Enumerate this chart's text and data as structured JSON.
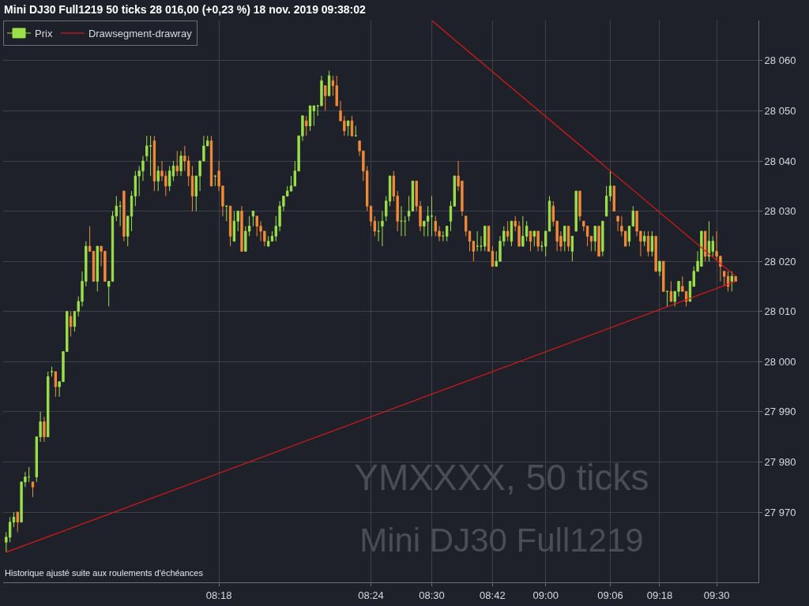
{
  "chart_data": {
    "type": "candlestick",
    "title": "Mini DJ30 Full1219 50 ticks 28 016,00 (+0,23 %) 18 nov. 2019 09:38:02",
    "annotations": [
      "YMXXXX, 50 ticks",
      "Mini DJ30 Full1219",
      "Historique ajusté suite aux roulements d'échéances"
    ],
    "categories": [
      null,
      null,
      null,
      null,
      null,
      null,
      null,
      null,
      null,
      null,
      null,
      null,
      null,
      null,
      null,
      null,
      null,
      null,
      null,
      null,
      null,
      null,
      null,
      null,
      null,
      null,
      null,
      null,
      null,
      null,
      null,
      null,
      null,
      null,
      null,
      null,
      null,
      null,
      null,
      null,
      null,
      null,
      null,
      null,
      null,
      null,
      null,
      null,
      null,
      null,
      null,
      null,
      null,
      null,
      null,
      null,
      "08:18",
      null,
      null,
      null,
      null,
      null,
      null,
      null,
      null,
      null,
      null,
      null,
      null,
      null,
      null,
      null,
      null,
      null,
      null,
      null,
      null,
      null,
      null,
      null,
      null,
      null,
      null,
      null,
      null,
      null,
      null,
      null,
      null,
      null,
      null,
      null,
      null,
      null,
      null,
      null,
      "08:24",
      null,
      null,
      null,
      null,
      null,
      null,
      null,
      null,
      null,
      null,
      null,
      null,
      null,
      null,
      null,
      "08:30",
      null,
      null,
      null,
      null,
      null,
      null,
      null,
      null,
      null,
      null,
      null,
      null,
      null,
      null,
      null,
      "08:42",
      null,
      null,
      null,
      null,
      null,
      null,
      null,
      null,
      null,
      null,
      null,
      null,
      null,
      "09:00",
      null,
      null,
      null,
      null,
      null,
      null,
      null,
      null,
      null,
      null,
      null,
      null,
      null,
      null,
      null,
      null,
      "09:06",
      null,
      null,
      null,
      null,
      null,
      null,
      null,
      null,
      null,
      null,
      null,
      null,
      "09:18",
      null,
      null,
      null,
      null,
      null,
      null,
      null,
      null,
      null,
      null,
      null,
      null,
      null,
      null,
      "09:30",
      null,
      null,
      null,
      null,
      null
    ],
    "series": [
      {
        "name": "Prix",
        "ohlc": [
          [
            27964,
            27966,
            27962,
            27965
          ],
          [
            27965,
            27969,
            27964,
            27968
          ],
          [
            27968,
            27970,
            27967,
            27969
          ],
          [
            27970,
            27970,
            27966,
            27968
          ],
          [
            27968,
            27976,
            27968,
            27976
          ],
          [
            27976,
            27978,
            27975,
            27977
          ],
          [
            27977,
            27979,
            27976,
            27977
          ],
          [
            27976,
            27976,
            27973,
            27975
          ],
          [
            27977,
            27985,
            27976,
            27985
          ],
          [
            27985,
            27990,
            27984,
            27988
          ],
          [
            27988,
            27989,
            27984,
            27985
          ],
          [
            27985,
            27998,
            27985,
            27997
          ],
          [
            27998,
            27999,
            27997,
            27998
          ],
          [
            27998,
            27998,
            27993,
            27995
          ],
          [
            27995,
            27996,
            27993,
            27996
          ],
          [
            27996,
            28002,
            27996,
            28002
          ],
          [
            28002,
            28010,
            28002,
            28010
          ],
          [
            28009,
            28010,
            28005,
            28007
          ],
          [
            28007,
            28010,
            28006,
            28010
          ],
          [
            28010,
            28013,
            28009,
            28012
          ],
          [
            28012,
            28018,
            28011,
            28016
          ],
          [
            28016,
            28024,
            28015,
            28023
          ],
          [
            28023,
            28027,
            28022,
            28022
          ],
          [
            28022,
            28022,
            28016,
            28016
          ],
          [
            28016,
            28023,
            28014,
            28023
          ],
          [
            28023,
            28023,
            28019,
            28022
          ],
          [
            28022,
            28022,
            28016,
            28016
          ],
          [
            28015,
            28016,
            28011,
            28016
          ],
          [
            28016,
            28030,
            28016,
            28029
          ],
          [
            28029,
            28033,
            28028,
            28031
          ],
          [
            28031,
            28032,
            28027,
            28031
          ],
          [
            28034,
            28034,
            28024,
            28025
          ],
          [
            28025,
            28029,
            28023,
            28029
          ],
          [
            28029,
            28034,
            28026,
            28033
          ],
          [
            28033,
            28038,
            28031,
            28037
          ],
          [
            28037,
            28039,
            28033,
            28038
          ],
          [
            28038,
            28041,
            28036,
            28040
          ],
          [
            28041,
            28045,
            28040,
            28043
          ],
          [
            28043,
            28045,
            28037,
            28043
          ],
          [
            28044,
            28045,
            28034,
            28036
          ],
          [
            28036,
            28039,
            28034,
            28038
          ],
          [
            28038,
            28040,
            28036,
            28037
          ],
          [
            28037,
            28038,
            28033,
            28035
          ],
          [
            28035,
            28039,
            28034,
            28038
          ],
          [
            28037,
            28040,
            28036,
            28039
          ],
          [
            28039,
            28042,
            28037,
            28038
          ],
          [
            28038,
            28042,
            28037,
            28041
          ],
          [
            28041,
            28043,
            28038,
            28040
          ],
          [
            28040,
            28041,
            28035,
            28037
          ],
          [
            28037,
            28039,
            28030,
            28033
          ],
          [
            28033,
            28037,
            28030,
            28037
          ],
          [
            28037,
            28040,
            28034,
            28040
          ],
          [
            28040,
            28045,
            28040,
            28043
          ],
          [
            28043,
            28045,
            28043,
            28044
          ],
          [
            28044,
            28045,
            28035,
            28035
          ],
          [
            28037,
            28037,
            28035,
            28037
          ],
          [
            28038,
            28040,
            28034,
            28035
          ],
          [
            28035,
            28035,
            28029,
            28031
          ],
          [
            28031,
            28031,
            28028,
            28031
          ],
          [
            28031,
            28031,
            28023,
            28025
          ],
          [
            28024,
            28030,
            28024,
            28028
          ],
          [
            28028,
            28030,
            28026,
            28030
          ],
          [
            28030,
            28031,
            28022,
            28022
          ],
          [
            28022,
            28027,
            28022,
            28026
          ],
          [
            28026,
            28029,
            28025,
            28027
          ],
          [
            28029,
            28030,
            28027,
            28030
          ],
          [
            28029,
            28029,
            28025,
            28027
          ],
          [
            28027,
            28028,
            28024,
            28026
          ],
          [
            28026,
            28026,
            28023,
            28024
          ],
          [
            28023,
            28025,
            28023,
            28024
          ],
          [
            28024,
            28026,
            28024,
            28025
          ],
          [
            28025,
            28029,
            28024,
            28027
          ],
          [
            28027,
            28032,
            28026,
            28031
          ],
          [
            28031,
            28033,
            28030,
            28033
          ],
          [
            28033,
            28035,
            28033,
            28034
          ],
          [
            28034,
            28037,
            28034,
            28035
          ],
          [
            28035,
            28040,
            28035,
            28038
          ],
          [
            28038,
            28045,
            28038,
            28045
          ],
          [
            28045,
            28049,
            28044,
            28049
          ],
          [
            28048,
            28049,
            28045,
            28047
          ],
          [
            28047,
            28051,
            28046,
            28051
          ],
          [
            28050,
            28051,
            28047,
            28051
          ],
          [
            28051,
            28051,
            28049,
            28051
          ],
          [
            28051,
            28057,
            28051,
            28056
          ],
          [
            28055,
            28055,
            28050,
            28053
          ],
          [
            28053,
            28058,
            28053,
            28057
          ],
          [
            28056,
            28057,
            28053,
            28055
          ],
          [
            28055,
            28057,
            28051,
            28051
          ],
          [
            28050,
            28052,
            28048,
            28048
          ],
          [
            28048,
            28049,
            28045,
            28046
          ],
          [
            28047,
            28048,
            28045,
            28048
          ],
          [
            28048,
            28049,
            28045,
            28045
          ],
          [
            28045,
            28047,
            28045,
            28045
          ],
          [
            28044,
            28044,
            28041,
            28042
          ],
          [
            28042,
            28042,
            28036,
            28038
          ],
          [
            28038,
            28039,
            28030,
            28031
          ],
          [
            28031,
            28031,
            28027,
            28028
          ],
          [
            28028,
            28029,
            28025,
            28026
          ],
          [
            28026,
            28028,
            28024,
            28026
          ],
          [
            28027,
            28030,
            28023,
            28028
          ],
          [
            28029,
            28033,
            28028,
            28032
          ],
          [
            28032,
            28037,
            28031,
            28037
          ],
          [
            28037,
            28038,
            28032,
            28033
          ],
          [
            28033,
            28034,
            28026,
            28028
          ],
          [
            28028,
            28031,
            28025,
            28028
          ],
          [
            28028,
            28029,
            28025,
            28028
          ],
          [
            28029,
            28033,
            28028,
            28030
          ],
          [
            28030,
            28036,
            28030,
            28036
          ],
          [
            28036,
            28036,
            28030,
            28031
          ],
          [
            28031,
            28032,
            28026,
            28027
          ],
          [
            28027,
            28028,
            28025,
            28028
          ],
          [
            28028,
            28031,
            28025,
            28029
          ],
          [
            28029,
            28033,
            28025,
            28029
          ],
          [
            28028,
            28029,
            28025,
            28026
          ],
          [
            28026,
            28027,
            28024,
            28025
          ],
          [
            28025,
            28026,
            28024,
            28025
          ],
          [
            28025,
            28027,
            28024,
            28027
          ],
          [
            28028,
            28032,
            28026,
            28031
          ],
          [
            28031,
            28037,
            28031,
            28037
          ],
          [
            28037,
            28040,
            28034,
            28035
          ],
          [
            28036,
            28036,
            28029,
            28030
          ],
          [
            28029,
            28029,
            28025,
            28026
          ],
          [
            28026,
            28026,
            28022,
            28024
          ],
          [
            28024,
            28024,
            28020,
            28022
          ],
          [
            28023,
            28026,
            28022,
            28023
          ],
          [
            28023,
            28025,
            28022,
            28023
          ],
          [
            28023,
            28027,
            28022,
            28027
          ],
          [
            28027,
            28027,
            28022,
            28022
          ],
          [
            28022,
            28023,
            28019,
            28019
          ],
          [
            28019,
            28022,
            28019,
            28020
          ],
          [
            28020,
            28025,
            28020,
            28024
          ],
          [
            28024,
            28027,
            28023,
            28026
          ],
          [
            28026,
            28028,
            28024,
            28025
          ],
          [
            28024,
            28028,
            28023,
            28028
          ],
          [
            28028,
            28029,
            28026,
            28027
          ],
          [
            28027,
            28028,
            28023,
            28023
          ],
          [
            28023,
            28029,
            28023,
            28025
          ],
          [
            28025,
            28028,
            28024,
            28027
          ],
          [
            28026,
            28026,
            28022,
            28024
          ],
          [
            28025,
            28026,
            28023,
            28026
          ],
          [
            28026,
            28026,
            28022,
            28023
          ],
          [
            28023,
            28024,
            28022,
            28023
          ],
          [
            28023,
            28026,
            28021,
            28026
          ],
          [
            28026,
            28033,
            28026,
            28032
          ],
          [
            28031,
            28032,
            28027,
            28028
          ],
          [
            28028,
            28028,
            28022,
            28024
          ],
          [
            28025,
            28026,
            28022,
            28023
          ],
          [
            28024,
            28027,
            28022,
            28027
          ],
          [
            28027,
            28027,
            28022,
            28023
          ],
          [
            28022,
            28025,
            28020,
            28025
          ],
          [
            28026,
            28034,
            28026,
            28034
          ],
          [
            28034,
            28034,
            28028,
            28029
          ],
          [
            28028,
            28028,
            28026,
            28027
          ],
          [
            28027,
            28027,
            28023,
            28025
          ],
          [
            28025,
            28025,
            28022,
            28024
          ],
          [
            28024,
            28027,
            28022,
            28027
          ],
          [
            28027,
            28027,
            28021,
            28021
          ],
          [
            28022,
            28028,
            28021,
            28028
          ],
          [
            28029,
            28035,
            28029,
            28033
          ],
          [
            28033,
            28038,
            28032,
            28035
          ],
          [
            28035,
            28035,
            28030,
            28030
          ],
          [
            28029,
            28029,
            28026,
            28028
          ],
          [
            28027,
            28029,
            28025,
            28026
          ],
          [
            28026,
            28026,
            28023,
            28023
          ],
          [
            28024,
            28027,
            28023,
            28027
          ],
          [
            28027,
            28031,
            28027,
            28030
          ],
          [
            28030,
            28030,
            28025,
            28026
          ],
          [
            28026,
            28026,
            28021,
            28024
          ],
          [
            28024,
            28026,
            28023,
            28025
          ],
          [
            28025,
            28026,
            28021,
            28022
          ],
          [
            28022,
            28026,
            28021,
            28025
          ],
          [
            28025,
            28025,
            28018,
            28018
          ],
          [
            28018,
            28020,
            28017,
            28020
          ],
          [
            28020,
            28020,
            28014,
            28014
          ],
          [
            28014,
            28014,
            28011,
            28014
          ],
          [
            28014,
            28016,
            28012,
            28012
          ],
          [
            28012,
            28014,
            28011,
            28014
          ],
          [
            28014,
            28016,
            28013,
            28016
          ],
          [
            28015,
            28017,
            28014,
            28014
          ],
          [
            28014,
            28014,
            28011,
            28012
          ],
          [
            28012,
            28016,
            28012,
            28016
          ],
          [
            28015,
            28019,
            28015,
            28018
          ],
          [
            28018,
            28022,
            28018,
            28020
          ],
          [
            28019,
            28026,
            28019,
            28026
          ],
          [
            28026,
            28026,
            28020,
            28021
          ],
          [
            28021,
            28028,
            28020,
            28024
          ],
          [
            28022,
            28025,
            28021,
            28024
          ],
          [
            28022,
            28026,
            28020,
            28021
          ],
          [
            28021,
            28021,
            28016,
            28019
          ],
          [
            28018,
            28018,
            28015,
            28017
          ],
          [
            28017,
            28018,
            28014,
            28015
          ],
          [
            28016,
            28018,
            28014,
            28017
          ],
          [
            28017,
            28017,
            28016,
            28016
          ]
        ],
        "colors": [
          "#9be04a",
          "#9be04a",
          "#9be04a",
          "#f28a38",
          "#9be04a",
          "#9be04a",
          "#9be04a",
          "#f28a38",
          "#9be04a",
          "#9be04a",
          "#f28a38",
          "#9be04a",
          "#9be04a",
          "#f28a38",
          "#9be04a",
          "#9be04a",
          "#9be04a",
          "#f28a38",
          "#9be04a",
          "#9be04a",
          "#9be04a",
          "#9be04a",
          "#f28a38",
          "#f28a38",
          "#9be04a",
          "#f28a38",
          "#f28a38",
          "#9be04a",
          "#9be04a",
          "#9be04a",
          "#9be04a",
          "#f28a38",
          "#9be04a",
          "#9be04a",
          "#9be04a",
          "#9be04a",
          "#9be04a",
          "#9be04a",
          "#9be04a",
          "#f28a38",
          "#9be04a",
          "#f28a38",
          "#f28a38",
          "#9be04a",
          "#9be04a",
          "#f28a38",
          "#9be04a",
          "#f28a38",
          "#f28a38",
          "#f28a38",
          "#9be04a",
          "#9be04a",
          "#9be04a",
          "#9be04a",
          "#f28a38",
          "#9be04a",
          "#f28a38",
          "#f28a38",
          "#9be04a",
          "#f28a38",
          "#9be04a",
          "#9be04a",
          "#f28a38",
          "#9be04a",
          "#9be04a",
          "#9be04a",
          "#f28a38",
          "#f28a38",
          "#f28a38",
          "#9be04a",
          "#9be04a",
          "#9be04a",
          "#9be04a",
          "#9be04a",
          "#9be04a",
          "#9be04a",
          "#9be04a",
          "#9be04a",
          "#9be04a",
          "#f28a38",
          "#9be04a",
          "#9be04a",
          "#9be04a",
          "#9be04a",
          "#f28a38",
          "#9be04a",
          "#f28a38",
          "#f28a38",
          "#f28a38",
          "#f28a38",
          "#9be04a",
          "#f28a38",
          "#9be04a",
          "#f28a38",
          "#f28a38",
          "#f28a38",
          "#f28a38",
          "#f28a38",
          "#9be04a",
          "#9be04a",
          "#9be04a",
          "#9be04a",
          "#f28a38",
          "#f28a38",
          "#9be04a",
          "#9be04a",
          "#9be04a",
          "#9be04a",
          "#f28a38",
          "#f28a38",
          "#9be04a",
          "#9be04a",
          "#9be04a",
          "#f28a38",
          "#f28a38",
          "#9be04a",
          "#9be04a",
          "#9be04a",
          "#9be04a",
          "#f28a38",
          "#f28a38",
          "#f28a38",
          "#f28a38",
          "#f28a38",
          "#9be04a",
          "#9be04a",
          "#9be04a",
          "#f28a38",
          "#f28a38",
          "#9be04a",
          "#9be04a",
          "#9be04a",
          "#f28a38",
          "#9be04a",
          "#f28a38",
          "#f28a38",
          "#9be04a",
          "#9be04a",
          "#f28a38",
          "#9be04a",
          "#f28a38",
          "#9be04a",
          "#9be04a",
          "#9be04a",
          "#f28a38",
          "#f28a38",
          "#f28a38",
          "#9be04a",
          "#f28a38",
          "#9be04a",
          "#9be04a",
          "#f28a38",
          "#f28a38",
          "#f28a38",
          "#f28a38",
          "#9be04a",
          "#f28a38",
          "#9be04a",
          "#9be04a",
          "#9be04a",
          "#f28a38",
          "#f28a38",
          "#f28a38",
          "#f28a38",
          "#9be04a",
          "#9be04a",
          "#f28a38",
          "#f28a38",
          "#9be04a",
          "#f28a38",
          "#9be04a",
          "#f28a38",
          "#9be04a",
          "#f28a38",
          "#9be04a",
          "#f28a38",
          "#9be04a",
          "#9be04a",
          "#f28a38",
          "#f28a38",
          "#9be04a",
          "#9be04a",
          "#9be04a",
          "#9be04a",
          "#f28a38",
          "#9be04a",
          "#9be04a",
          "#f28a38",
          "#f28a38",
          "#f28a38",
          "#f28a38",
          "#9be04a",
          "#f28a38"
        ]
      },
      {
        "name": "Drawsegment-drawray",
        "type": "line",
        "color": "#d81818",
        "values": [
          null,
          null,
          null,
          null,
          null,
          null,
          null,
          null,
          null,
          null,
          null,
          null,
          null,
          null,
          null,
          null,
          null,
          null,
          null,
          null,
          null,
          null,
          null,
          null,
          null,
          null,
          null,
          null,
          null,
          null,
          null,
          null,
          null,
          null,
          null,
          null,
          null,
          null,
          null,
          null,
          null,
          null,
          null,
          null,
          null,
          null,
          null,
          null,
          null,
          null,
          null,
          null,
          null,
          null,
          null,
          null,
          null,
          null,
          null,
          null,
          null,
          null,
          null,
          null,
          null,
          null,
          null,
          null,
          null,
          null,
          null,
          null,
          null,
          null,
          null,
          null,
          null,
          null,
          null,
          null,
          null,
          null,
          null,
          null,
          null,
          null,
          null,
          null,
          null,
          null,
          null,
          null,
          null,
          null,
          null,
          null,
          null,
          null,
          null,
          null,
          null,
          null,
          null,
          null,
          null,
          null,
          null,
          null,
          null,
          null,
          null,
          null,
          28068,
          null,
          null,
          null,
          null,
          null,
          null,
          null,
          null,
          null,
          null,
          null,
          null,
          null,
          null,
          null,
          null,
          null,
          null,
          null,
          null,
          null,
          null,
          null,
          null,
          null,
          null,
          null,
          null,
          null,
          null,
          null,
          null,
          null,
          null,
          null,
          null,
          null,
          null,
          null,
          null,
          null,
          null,
          null,
          null,
          null,
          null,
          null,
          null,
          null,
          null,
          null,
          null,
          null,
          null,
          null,
          null,
          null,
          null,
          null,
          null,
          null,
          null,
          null,
          null,
          null,
          null,
          null,
          null,
          null,
          null,
          null,
          null,
          null,
          null,
          null,
          null,
          null,
          null,
          null,
          28017
        ]
      },
      {
        "type": "line",
        "color": "#d81818",
        "values": [
          27962,
          null,
          null,
          null,
          null,
          null,
          null,
          null,
          null,
          null,
          null,
          null,
          null,
          null,
          null,
          null,
          null,
          null,
          null,
          null,
          null,
          null,
          null,
          null,
          null,
          null,
          null,
          null,
          null,
          null,
          null,
          null,
          null,
          null,
          null,
          null,
          null,
          null,
          null,
          null,
          null,
          null,
          null,
          null,
          null,
          null,
          null,
          null,
          null,
          null,
          null,
          null,
          null,
          null,
          null,
          null,
          null,
          null,
          null,
          null,
          null,
          null,
          null,
          null,
          null,
          null,
          null,
          null,
          null,
          null,
          null,
          null,
          null,
          null,
          null,
          null,
          null,
          null,
          null,
          null,
          null,
          null,
          null,
          null,
          null,
          null,
          null,
          null,
          null,
          null,
          null,
          null,
          null,
          null,
          null,
          null,
          null,
          null,
          null,
          null,
          null,
          null,
          null,
          null,
          null,
          null,
          null,
          null,
          null,
          null,
          null,
          null,
          null,
          null,
          null,
          null,
          null,
          null,
          null,
          null,
          null,
          null,
          null,
          null,
          null,
          null,
          null,
          null,
          null,
          null,
          null,
          null,
          null,
          null,
          null,
          null,
          null,
          null,
          null,
          null,
          null,
          null,
          null,
          null,
          null,
          null,
          null,
          null,
          null,
          null,
          null,
          null,
          null,
          null,
          null,
          null,
          null,
          null,
          null,
          null,
          null,
          null,
          null,
          null,
          null,
          null,
          null,
          null,
          null,
          null,
          null,
          null,
          null,
          null,
          null,
          null,
          null,
          null,
          null,
          null,
          null,
          null,
          null,
          null,
          null,
          null,
          null,
          null,
          null,
          null,
          null,
          null,
          28016
        ]
      }
    ],
    "ylim": [
      27956,
      28068
    ],
    "yticks": [
      {
        "value": 27970,
        "label": "27 970"
      },
      {
        "value": 27980,
        "label": "27 980"
      },
      {
        "value": 27990,
        "label": "27 990"
      },
      {
        "value": 28000,
        "label": "28 000"
      },
      {
        "value": 28010,
        "label": "28 010"
      },
      {
        "value": 28020,
        "label": "28 020"
      },
      {
        "value": 28030,
        "label": "28 030"
      },
      {
        "value": 28040,
        "label": "28 040"
      },
      {
        "value": 28050,
        "label": "28 050"
      },
      {
        "value": 28060,
        "label": "28 060"
      }
    ],
    "grid": true,
    "legend": "top left"
  }
}
